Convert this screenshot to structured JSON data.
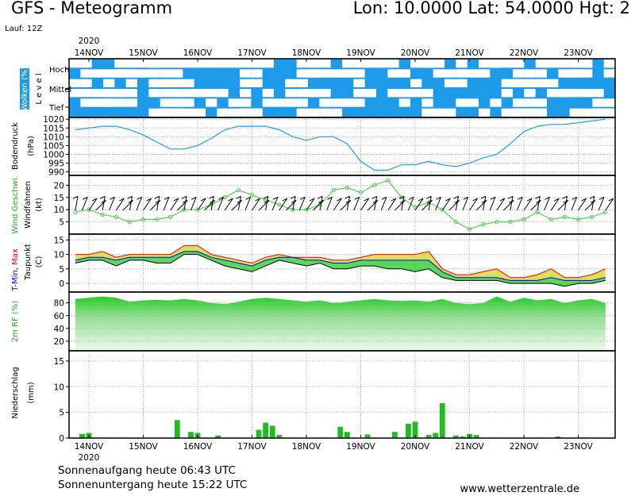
{
  "header": {
    "title": "GFS - Meteogramm",
    "coords": "Lon: 10.0000 Lat: 54.0000 Hgt: 2",
    "run": "Lauf: 12Z"
  },
  "footer": {
    "sunrise": "Sonnenaufgang heute 06:43 UTC",
    "sunset": "Sonnenuntergang heute 15:22 UTC",
    "site": "www.wetterzentrale.de"
  },
  "colors": {
    "cloud": "#1e9be8",
    "pressure": "#1e9be8",
    "wind_line": "#55d155",
    "temp_max_band": "#d9d940",
    "temp_min_band": "#22cc22",
    "tmin_line": "#0000ee",
    "tmax_line": "#ee0000",
    "humidity": "#22cc22",
    "precip_rain": "#22bb22",
    "precip_conv": "#dd4422"
  },
  "chart_data": {
    "type": "meteogram",
    "year_label": "2020",
    "day_labels": [
      "14NOV",
      "15NOV",
      "16NOV",
      "17NOV",
      "18NOV",
      "19NOV",
      "20NOV",
      "21NOV",
      "22NOV",
      "23NOV"
    ],
    "panels": {
      "clouds": {
        "ylabel": "Wolken (%)",
        "level_axis": "L e v e l",
        "levels": [
          "Hoch",
          "Mittel",
          "Tief"
        ]
      },
      "pressure": {
        "ylabel": "Bodendruck",
        "unit": "(hPa)",
        "ticks": [
          990,
          995,
          1000,
          1005,
          1010,
          1015,
          1020
        ],
        "ylim": [
          988,
          1021
        ],
        "x": [
          0,
          6,
          12,
          18,
          24,
          30,
          36,
          42,
          48,
          54,
          60,
          66,
          72,
          78,
          84,
          90,
          96,
          102,
          108,
          114,
          120,
          126,
          132,
          138,
          144,
          150,
          156,
          162,
          168,
          174,
          180,
          186,
          192,
          198,
          204,
          210,
          216,
          222,
          228,
          234
        ],
        "values": [
          1014,
          1015,
          1016,
          1016,
          1014,
          1011,
          1007,
          1003,
          1003,
          1005,
          1009,
          1014,
          1016,
          1016,
          1016,
          1014,
          1010,
          1008,
          1010,
          1010,
          1006,
          996,
          991,
          991,
          994,
          994,
          996,
          994,
          993,
          995,
          998,
          1000,
          1006,
          1013,
          1016,
          1017,
          1017,
          1018,
          1019,
          1020
        ]
      },
      "wind": {
        "label_speed": "Wind Geschwi.",
        "label_barbs": "Windfahnen",
        "unit": "(kt)",
        "ticks": [
          5,
          10,
          15,
          20
        ],
        "ylim": [
          0,
          24
        ],
        "x": [
          0,
          6,
          12,
          18,
          24,
          30,
          36,
          42,
          48,
          54,
          60,
          66,
          72,
          78,
          84,
          90,
          96,
          102,
          108,
          114,
          120,
          126,
          132,
          138,
          144,
          150,
          156,
          162,
          168,
          174,
          180,
          186,
          192,
          198,
          204,
          210,
          216,
          222,
          228,
          234
        ],
        "values": [
          9,
          10,
          8,
          7,
          5,
          6,
          6,
          7,
          10,
          10,
          12,
          15,
          18,
          16,
          14,
          12,
          10,
          10,
          12,
          18,
          19,
          17,
          20,
          22,
          15,
          11,
          13,
          10,
          5,
          2,
          4,
          5,
          5,
          6,
          9,
          6,
          7,
          6,
          7,
          9
        ]
      },
      "temperature": {
        "label_tmin": "T-Min,",
        "label_tmax": "Max",
        "label_dew": "Taupunkt",
        "unit": "(C)",
        "ticks": [
          0,
          5,
          10,
          15
        ],
        "ylim": [
          -3,
          17
        ],
        "x": [
          0,
          6,
          12,
          18,
          24,
          30,
          36,
          42,
          48,
          54,
          60,
          66,
          72,
          78,
          84,
          90,
          96,
          102,
          108,
          114,
          120,
          126,
          132,
          138,
          144,
          150,
          156,
          162,
          168,
          174,
          180,
          186,
          192,
          198,
          204,
          210,
          216,
          222,
          228,
          234
        ],
        "tmax": [
          10,
          10,
          11,
          9,
          10,
          10,
          10,
          10,
          13,
          13,
          10,
          9,
          8,
          7,
          9,
          10,
          9,
          9,
          9,
          8,
          8,
          9,
          10,
          10,
          10,
          10,
          11,
          5,
          3,
          3,
          4,
          5,
          2,
          2,
          3,
          5,
          2,
          2,
          3,
          5
        ],
        "tmin": [
          8,
          9,
          9,
          8,
          9,
          9,
          9,
          9,
          11,
          11,
          9,
          8,
          7,
          6,
          8,
          9,
          9,
          8,
          8,
          7,
          7,
          8,
          8,
          8,
          8,
          8,
          8,
          4,
          2,
          2,
          2,
          2,
          1,
          1,
          1,
          2,
          1,
          1,
          1,
          2
        ],
        "dewpoint": [
          7,
          8,
          8,
          6,
          8,
          8,
          7,
          7,
          10,
          10,
          8,
          6,
          5,
          4,
          6,
          8,
          7,
          6,
          7,
          5,
          5,
          6,
          6,
          5,
          5,
          4,
          5,
          2,
          1,
          1,
          1,
          1,
          0,
          0,
          0,
          0,
          -1,
          0,
          0,
          1
        ]
      },
      "humidity": {
        "ylabel": "2m RF (%)",
        "ticks": [
          20,
          40,
          60,
          80
        ],
        "ylim": [
          5,
          97
        ],
        "x": [
          0,
          6,
          12,
          18,
          24,
          30,
          36,
          42,
          48,
          54,
          60,
          66,
          72,
          78,
          84,
          90,
          96,
          102,
          108,
          114,
          120,
          126,
          132,
          138,
          144,
          150,
          156,
          162,
          168,
          174,
          180,
          186,
          192,
          198,
          204,
          210,
          216,
          222,
          228,
          234
        ],
        "values": [
          86,
          88,
          90,
          88,
          82,
          84,
          85,
          84,
          86,
          84,
          80,
          78,
          82,
          86,
          88,
          86,
          84,
          82,
          84,
          80,
          82,
          84,
          86,
          84,
          83,
          84,
          82,
          86,
          80,
          78,
          80,
          90,
          82,
          88,
          84,
          86,
          80,
          84,
          86,
          80
        ]
      },
      "precipitation": {
        "ylabel": "Niederschlag",
        "unit": "(mm)",
        "ticks": [
          0,
          5,
          10,
          15
        ],
        "ylim": [
          0,
          17
        ],
        "bars": [
          {
            "x": 3,
            "value": 0.8
          },
          {
            "x": 6,
            "value": 1.0
          },
          {
            "x": 9,
            "value": 0.1
          },
          {
            "x": 45,
            "value": 3.5
          },
          {
            "x": 51,
            "value": 1.2
          },
          {
            "x": 54,
            "value": 1.0
          },
          {
            "x": 63,
            "value": 0.5
          },
          {
            "x": 81,
            "value": 1.6
          },
          {
            "x": 84,
            "value": 3.0
          },
          {
            "x": 87,
            "value": 2.4
          },
          {
            "x": 90,
            "value": 0.6
          },
          {
            "x": 117,
            "value": 2.2
          },
          {
            "x": 120,
            "value": 1.2
          },
          {
            "x": 129,
            "value": 0.7
          },
          {
            "x": 141,
            "value": 1.2
          },
          {
            "x": 147,
            "value": 2.8
          },
          {
            "x": 150,
            "value": 3.2
          },
          {
            "x": 156,
            "value": 0.6
          },
          {
            "x": 159,
            "value": 1.0
          },
          {
            "x": 162,
            "value": 6.8
          },
          {
            "x": 168,
            "value": 0.5
          },
          {
            "x": 171,
            "value": 0.3
          },
          {
            "x": 174,
            "value": 0.8
          },
          {
            "x": 177,
            "value": 0.6
          },
          {
            "x": 192,
            "value": 0.1
          },
          {
            "x": 213,
            "value": 0.3
          },
          {
            "x": 225,
            "value": 0.1
          }
        ]
      }
    }
  }
}
